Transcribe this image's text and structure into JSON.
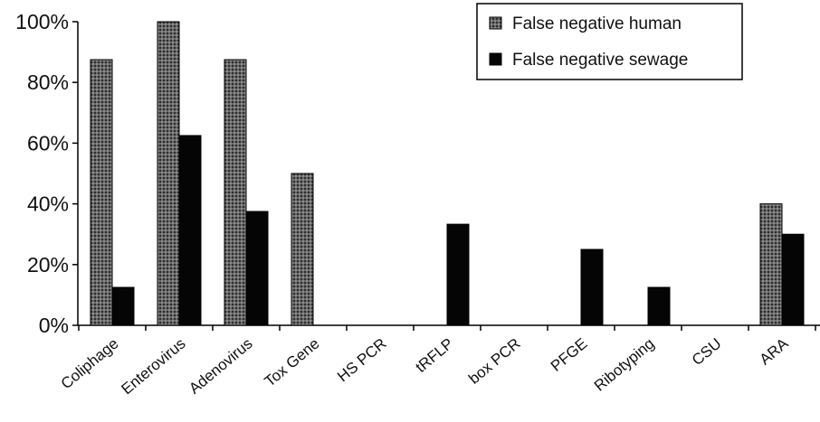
{
  "chart_data": {
    "type": "bar",
    "categories": [
      "Coliphage",
      "Enterovirus",
      "Adenovirus",
      "Tox Gene",
      "HS PCR",
      "tRFLP",
      "box PCR",
      "PFGE",
      "Ribotyping",
      "CSU",
      "ARA"
    ],
    "series": [
      {
        "name": "False negative human",
        "values": [
          87.5,
          100,
          87.5,
          50,
          0,
          0,
          0,
          0,
          0,
          0,
          40
        ],
        "color": "#5a5a5a",
        "pattern": "dotted-gray"
      },
      {
        "name": "False negative sewage",
        "values": [
          12.5,
          62.5,
          37.5,
          0,
          0,
          33.3,
          0,
          25,
          12.5,
          0,
          30
        ],
        "color": "#050505"
      }
    ],
    "y_ticks": [
      "0%",
      "20%",
      "40%",
      "60%",
      "80%",
      "100%"
    ],
    "ylim": [
      0,
      100
    ],
    "ylabel": "",
    "xlabel": "",
    "title": "",
    "legend_position": "top-right",
    "grid": false
  }
}
